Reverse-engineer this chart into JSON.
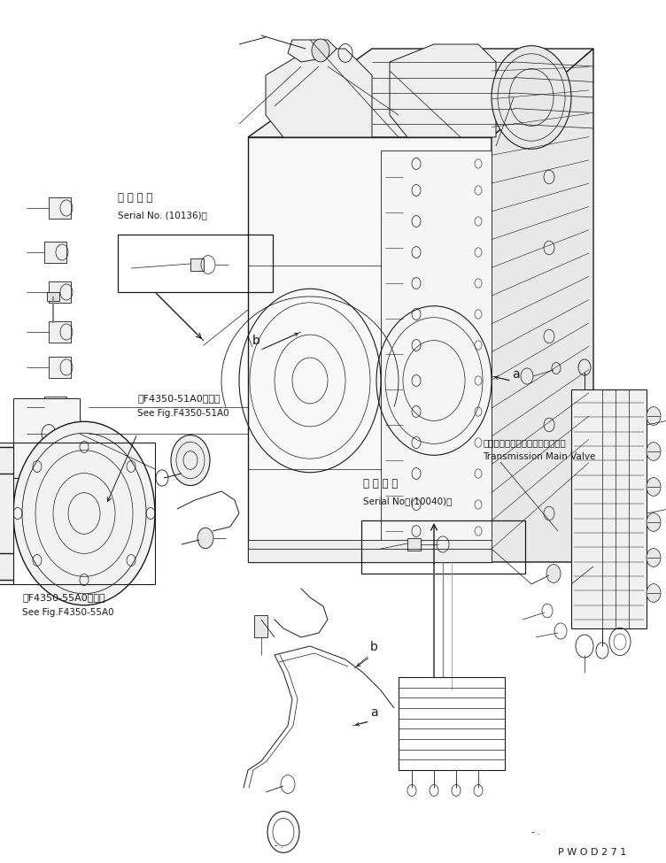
{
  "bg_color": "#ffffff",
  "lc": "#1a1a1a",
  "fig_width": 7.52,
  "fig_height": 9.75,
  "dpi": 100,
  "watermark": "P W O D 2 7 1",
  "serial1_jp": "適 用 号 機",
  "serial1_en": "Serial No. (10136)～",
  "serial2_jp": "適 用 号 機",
  "serial2_en": "Serial No（(10040)～",
  "ref1_jp": "第F4350-51A0図参照",
  "ref1_en": "See Fig.F4350-51A0",
  "ref2_jp": "第F4350-55A0図参照",
  "ref2_en": "See Fig.F4350-55A0",
  "tmv_jp": "トランスミッションメインバルブ",
  "tmv_en": "Transmission Main Valve"
}
